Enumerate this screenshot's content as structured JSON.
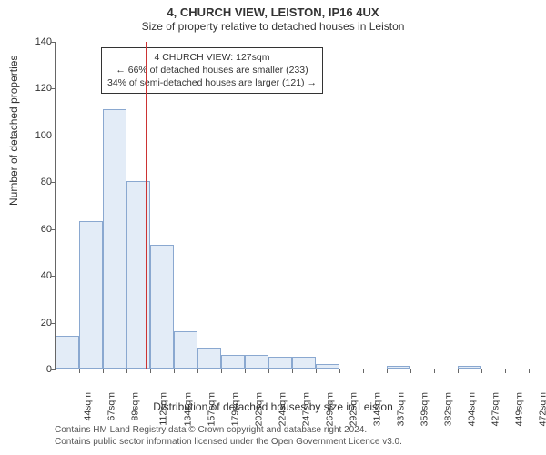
{
  "chart": {
    "type": "histogram",
    "title": "4, CHURCH VIEW, LEISTON, IP16 4UX",
    "subtitle": "Size of property relative to detached houses in Leiston",
    "xlabel": "Distribution of detached houses by size in Leiston",
    "ylabel": "Number of detached properties",
    "ylim": [
      0,
      140
    ],
    "ytick_step": 20,
    "yticks": [
      0,
      20,
      40,
      60,
      80,
      100,
      120,
      140
    ],
    "xtick_start": 44,
    "xtick_step": 22.5,
    "xtick_count": 21,
    "xtick_unit": "sqm",
    "bar_color": "#e3ecf7",
    "bar_border": "#8aa8d0",
    "marker_color": "#cc3333",
    "background_color": "#ffffff",
    "grid_color": "#666666",
    "label_fontsize": 12,
    "title_fontsize": 13,
    "tick_fontsize": 11,
    "values": [
      14,
      63,
      111,
      80,
      53,
      16,
      9,
      6,
      6,
      5,
      5,
      2,
      0,
      0,
      1,
      0,
      0,
      1,
      0,
      0
    ],
    "marker": {
      "bin_index": 3.8,
      "value_sqm": 127,
      "label": "4 CHURCH VIEW: 127sqm"
    },
    "annotation": {
      "line1": "4 CHURCH VIEW: 127sqm",
      "line2": "← 66% of detached houses are smaller (233)",
      "line3": "34% of semi-detached houses are larger (121) →"
    },
    "attribution": {
      "line1": "Contains HM Land Registry data © Crown copyright and database right 2024.",
      "line2": "Contains public sector information licensed under the Open Government Licence v3.0."
    }
  }
}
